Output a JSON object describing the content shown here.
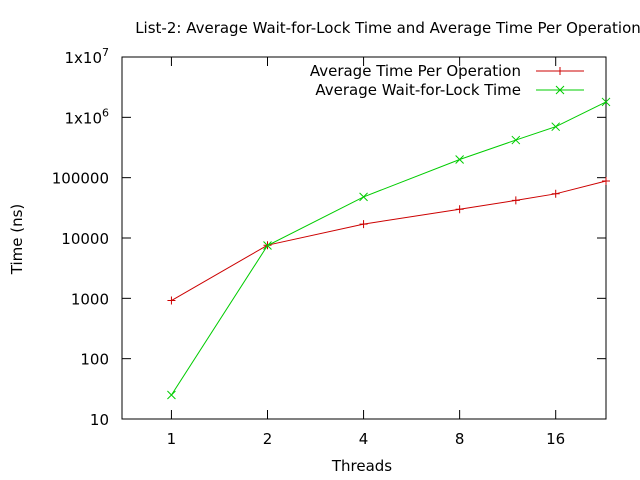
{
  "chart_data": {
    "type": "line",
    "title": "List-2: Average Wait-for-Lock Time and Average Time Per Operation",
    "xlabel": "Threads",
    "ylabel": "Time (ns)",
    "x_scale": "log2",
    "y_scale": "log10",
    "xlim": [
      0.7,
      23
    ],
    "ylim": [
      10,
      10000000
    ],
    "x_ticks": [
      1,
      2,
      4,
      8,
      16
    ],
    "x_tick_labels": [
      "1",
      "2",
      "4",
      "8",
      "16"
    ],
    "y_ticks": [
      10,
      100,
      1000,
      10000,
      100000,
      1000000,
      10000000
    ],
    "y_tick_labels": [
      {
        "base": "10",
        "sup": ""
      },
      {
        "base": "100",
        "sup": ""
      },
      {
        "base": "1000",
        "sup": ""
      },
      {
        "base": "10000",
        "sup": ""
      },
      {
        "base": "100000",
        "sup": ""
      },
      {
        "base": "1x10",
        "sup": "6"
      },
      {
        "base": "1x10",
        "sup": "7"
      }
    ],
    "legend_position": "top-right",
    "grid": false,
    "series": [
      {
        "name": "Average Time Per Operation",
        "color": "#cc0000",
        "marker": "plus",
        "x": [
          1,
          2,
          4,
          8,
          12,
          16,
          23
        ],
        "y": [
          920,
          7600,
          17000,
          30000,
          42000,
          54000,
          88000
        ]
      },
      {
        "name": "Average Wait-for-Lock Time",
        "color": "#00cc00",
        "marker": "cross",
        "x": [
          1,
          2,
          4,
          8,
          12,
          16,
          23
        ],
        "y": [
          25,
          7500,
          48000,
          200000,
          420000,
          700000,
          1800000
        ]
      }
    ]
  }
}
